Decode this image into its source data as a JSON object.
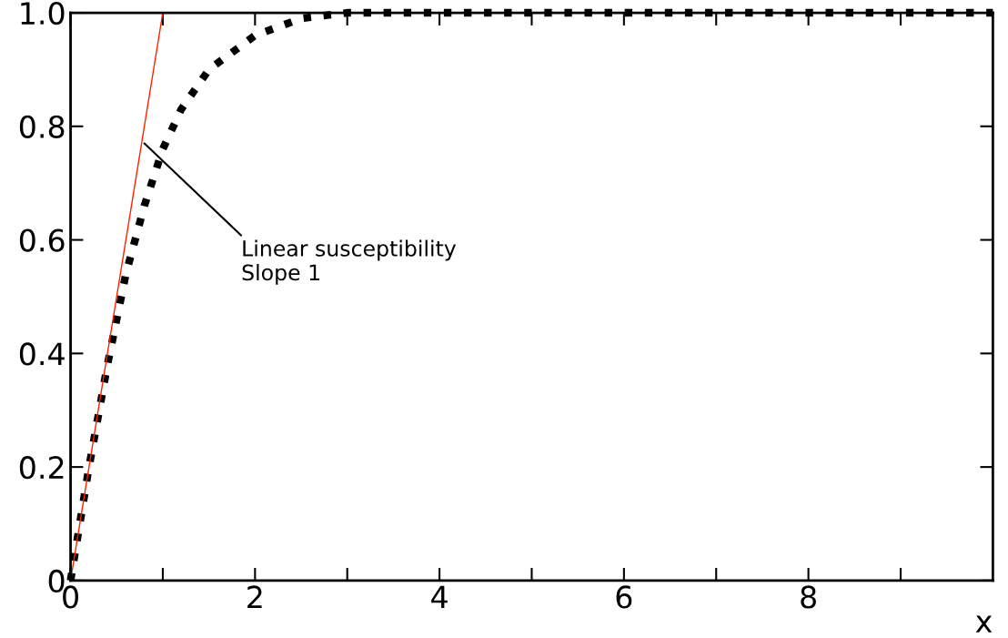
{
  "chart_data": {
    "type": "line",
    "xlabel": "x",
    "x": [
      0,
      0.2,
      0.4,
      0.6,
      0.8,
      1.0,
      1.2,
      1.5,
      2.0,
      2.5,
      3.0,
      4.0,
      5.0,
      6.0,
      7.0,
      8.0,
      9.0,
      10.0
    ],
    "series": [
      {
        "color": "#000000",
        "line_style": "dotted",
        "values": [
          0,
          0.2,
          0.38,
          0.54,
          0.66,
          0.76,
          0.83,
          0.9,
          0.96,
          0.99,
          1.0,
          1.0,
          1.0,
          1.0,
          1.0,
          1.0,
          1.0,
          1.0
        ]
      },
      {
        "color": "#ff2000",
        "line_style": "solid",
        "x": [
          0,
          1.0
        ],
        "values": [
          0,
          1.0
        ]
      }
    ],
    "xlim": [
      0,
      10
    ],
    "xticks": [
      0,
      {
        "value": 1,
        "label": null
      },
      2,
      {
        "value": 3,
        "label": null
      },
      4,
      {
        "value": 5,
        "label": null
      },
      6,
      {
        "value": 7,
        "label": null
      },
      8,
      {
        "value": 9,
        "label": null
      }
    ],
    "ylim": [
      0,
      1
    ],
    "yticks": [
      0,
      0.2,
      0.4,
      0.6,
      0.8,
      {
        "value": 1,
        "label": "1.0"
      }
    ],
    "annotations": [
      {
        "text": "Linear susceptibility\nSlope 1",
        "x": 0.8,
        "y": 0.77
      }
    ],
    "grid": false,
    "marker": "none"
  }
}
